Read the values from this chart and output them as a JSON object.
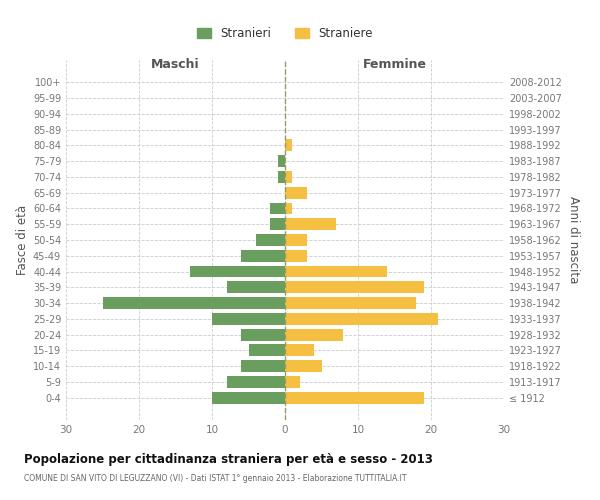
{
  "age_groups": [
    "100+",
    "95-99",
    "90-94",
    "85-89",
    "80-84",
    "75-79",
    "70-74",
    "65-69",
    "60-64",
    "55-59",
    "50-54",
    "45-49",
    "40-44",
    "35-39",
    "30-34",
    "25-29",
    "20-24",
    "15-19",
    "10-14",
    "5-9",
    "0-4"
  ],
  "birth_years": [
    "≤ 1912",
    "1913-1917",
    "1918-1922",
    "1923-1927",
    "1928-1932",
    "1933-1937",
    "1938-1942",
    "1943-1947",
    "1948-1952",
    "1953-1957",
    "1958-1962",
    "1963-1967",
    "1968-1972",
    "1973-1977",
    "1978-1982",
    "1983-1987",
    "1988-1992",
    "1993-1997",
    "1998-2002",
    "2003-2007",
    "2008-2012"
  ],
  "males": [
    0,
    0,
    0,
    0,
    0,
    1,
    1,
    0,
    2,
    2,
    4,
    6,
    13,
    8,
    25,
    10,
    6,
    5,
    6,
    8,
    10
  ],
  "females": [
    0,
    0,
    0,
    0,
    1,
    0,
    1,
    3,
    1,
    7,
    3,
    3,
    14,
    19,
    18,
    21,
    8,
    4,
    5,
    2,
    19
  ],
  "male_color": "#6a9e5e",
  "female_color": "#f5bf42",
  "grid_color": "#cccccc",
  "centerline_color": "#999966",
  "title": "Popolazione per cittadinanza straniera per età e sesso - 2013",
  "subtitle": "COMUNE DI SAN VITO DI LEGUZZANO (VI) - Dati ISTAT 1° gennaio 2013 - Elaborazione TUTTITALIA.IT",
  "ylabel_left": "Fasce di età",
  "ylabel_right": "Anni di nascita",
  "header_left": "Maschi",
  "header_right": "Femmine",
  "legend_males": "Stranieri",
  "legend_females": "Straniere",
  "xlim": 30,
  "bar_height": 0.75,
  "tick_color": "#777777",
  "header_color": "#555555",
  "title_color": "#111111",
  "subtitle_color": "#666666"
}
